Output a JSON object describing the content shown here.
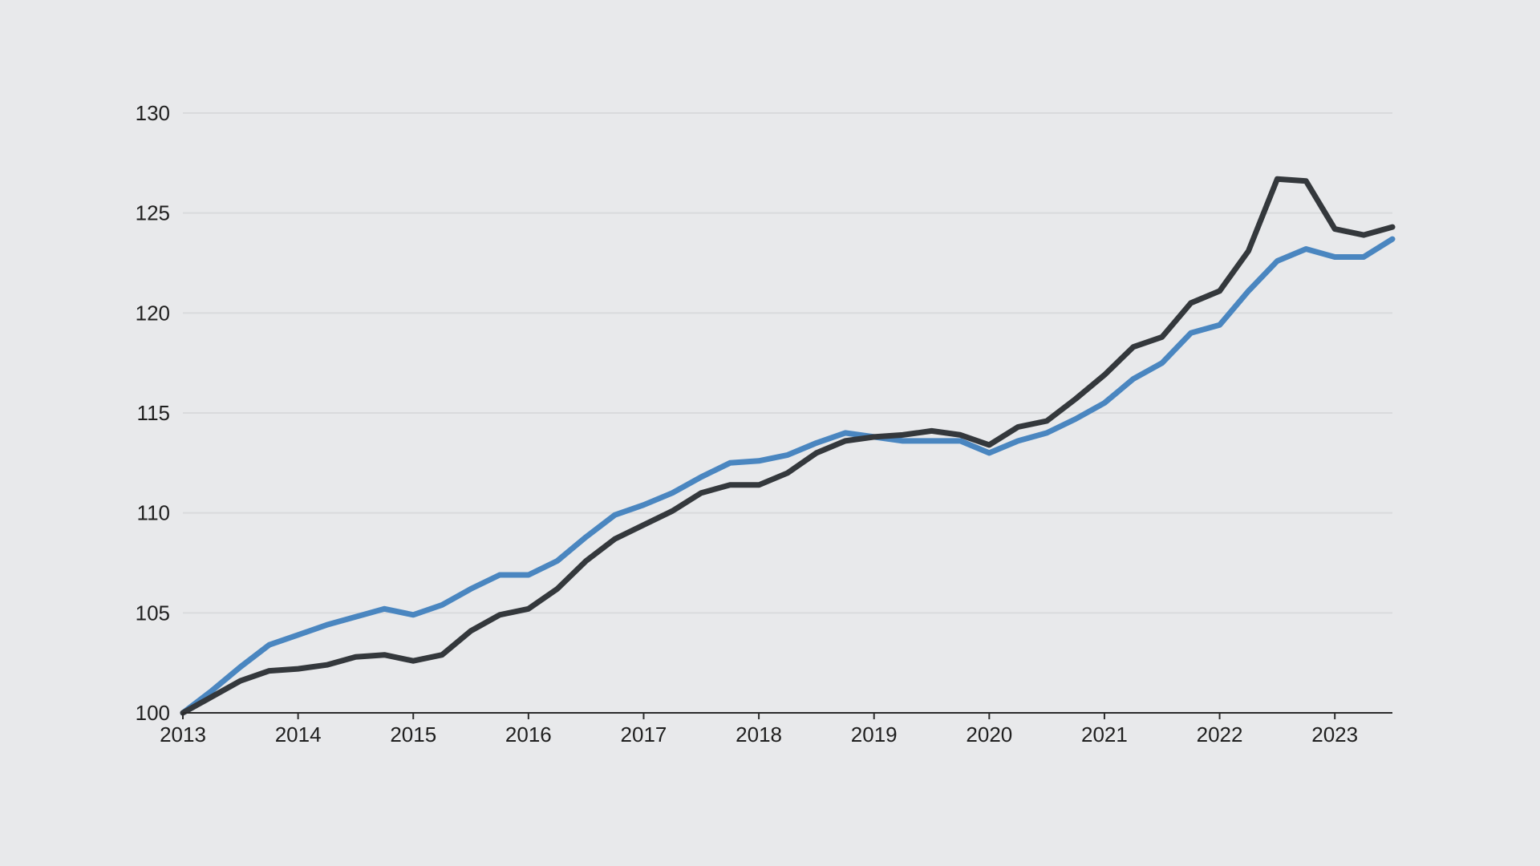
{
  "chart_data": {
    "type": "line",
    "title": "",
    "xlabel": "",
    "ylabel": "",
    "xlim": [
      2013,
      2023.5
    ],
    "ylim": [
      100,
      130
    ],
    "y_ticks": [
      100,
      105,
      110,
      115,
      120,
      125,
      130
    ],
    "y_tick_labels": [
      "100",
      "105",
      "110",
      "115",
      "120",
      "125",
      "130"
    ],
    "x_ticks": [
      2013,
      2014,
      2015,
      2016,
      2017,
      2018,
      2019,
      2020,
      2021,
      2022,
      2023
    ],
    "x_tick_labels": [
      "2013",
      "2014",
      "2015",
      "2016",
      "2017",
      "2018",
      "2019",
      "2020",
      "2021",
      "2022",
      "2023"
    ],
    "grid": true,
    "legend": "none",
    "x": [
      2013.0,
      2013.25,
      2013.5,
      2013.75,
      2014.0,
      2014.25,
      2014.5,
      2014.75,
      2015.0,
      2015.25,
      2015.5,
      2015.75,
      2016.0,
      2016.25,
      2016.5,
      2016.75,
      2017.0,
      2017.25,
      2017.5,
      2017.75,
      2018.0,
      2018.25,
      2018.5,
      2018.75,
      2019.0,
      2019.25,
      2019.5,
      2019.75,
      2020.0,
      2020.25,
      2020.5,
      2020.75,
      2021.0,
      2021.25,
      2021.5,
      2021.75,
      2022.0,
      2022.25,
      2022.5,
      2022.75,
      2023.0,
      2023.25,
      2023.5
    ],
    "series": [
      {
        "name": "blue series",
        "color": "#4a86c0",
        "values": [
          100.0,
          101.1,
          102.3,
          103.4,
          103.9,
          104.4,
          104.8,
          105.2,
          104.9,
          105.4,
          106.2,
          106.9,
          106.9,
          107.6,
          108.8,
          109.9,
          110.4,
          111.0,
          111.8,
          112.5,
          112.6,
          112.9,
          113.5,
          114.0,
          113.8,
          113.6,
          113.6,
          113.6,
          113.0,
          113.6,
          114.0,
          114.7,
          115.5,
          116.7,
          117.5,
          119.0,
          119.4,
          121.1,
          122.6,
          123.2,
          122.8,
          122.8,
          123.7
        ]
      },
      {
        "name": "dark series",
        "color": "#34383c",
        "values": [
          100.0,
          100.8,
          101.6,
          102.1,
          102.2,
          102.4,
          102.8,
          102.9,
          102.6,
          102.9,
          104.1,
          104.9,
          105.2,
          106.2,
          107.6,
          108.7,
          109.4,
          110.1,
          111.0,
          111.4,
          111.4,
          112.0,
          113.0,
          113.6,
          113.8,
          113.9,
          114.1,
          113.9,
          113.4,
          114.3,
          114.6,
          115.7,
          116.9,
          118.3,
          118.8,
          120.5,
          121.1,
          123.1,
          126.7,
          126.6,
          124.2,
          123.9,
          124.3
        ]
      }
    ]
  }
}
